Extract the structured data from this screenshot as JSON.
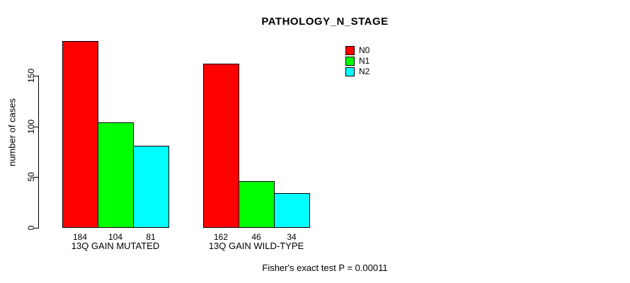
{
  "chart_data": {
    "type": "bar",
    "title": "PATHOLOGY_N_STAGE",
    "ylabel": "number of cases",
    "xlabel": "",
    "categories": [
      "13Q GAIN MUTATED",
      "13Q GAIN WILD-TYPE"
    ],
    "series": [
      {
        "name": "N0",
        "color": "#ff0000",
        "values": [
          184,
          162
        ]
      },
      {
        "name": "N1",
        "color": "#00ff00",
        "values": [
          104,
          46
        ]
      },
      {
        "name": "N2",
        "color": "#00ffff",
        "values": [
          81,
          34
        ]
      }
    ],
    "bar_value_labels": [
      [
        "184",
        "104",
        "81"
      ],
      [
        "162",
        "46",
        "34"
      ]
    ],
    "yticks": [
      "0",
      "50",
      "100",
      "150"
    ],
    "ylim": [
      0,
      190
    ],
    "grid": false,
    "legend_position": "top-right",
    "annotation": "Fisher's exact test P = 0.00011"
  }
}
